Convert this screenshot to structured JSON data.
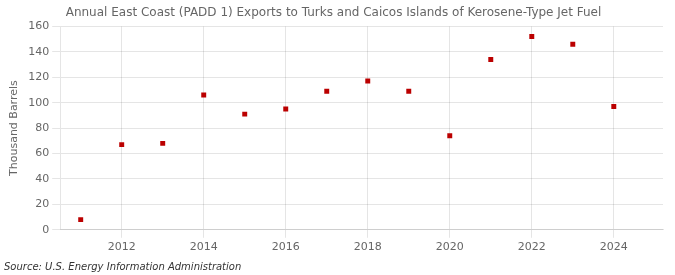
{
  "chart_data": {
    "type": "scatter",
    "title": "Annual East Coast (PADD 1) Exports to Turks and Caicos Islands of Kerosene-Type Jet Fuel",
    "ylabel": "Thousand Barrels",
    "annotations": [
      "Source: U.S. Energy Information Administration"
    ],
    "x": [
      2011,
      2012,
      2013,
      2014,
      2015,
      2016,
      2017,
      2018,
      2019,
      2020,
      2021,
      2022,
      2023,
      2024
    ],
    "values": [
      8,
      67,
      68,
      106,
      91,
      95,
      109,
      117,
      109,
      74,
      134,
      152,
      146,
      97
    ],
    "color": "#bb0000",
    "marker": "square",
    "xlim": [
      2010.5,
      2025.2
    ],
    "ylim": [
      0,
      160
    ],
    "xticks": [
      2012,
      2014,
      2016,
      2018,
      2020,
      2022,
      2024
    ],
    "yticks": [
      0,
      20,
      40,
      60,
      80,
      100,
      120,
      140,
      160
    ],
    "grid": true
  }
}
